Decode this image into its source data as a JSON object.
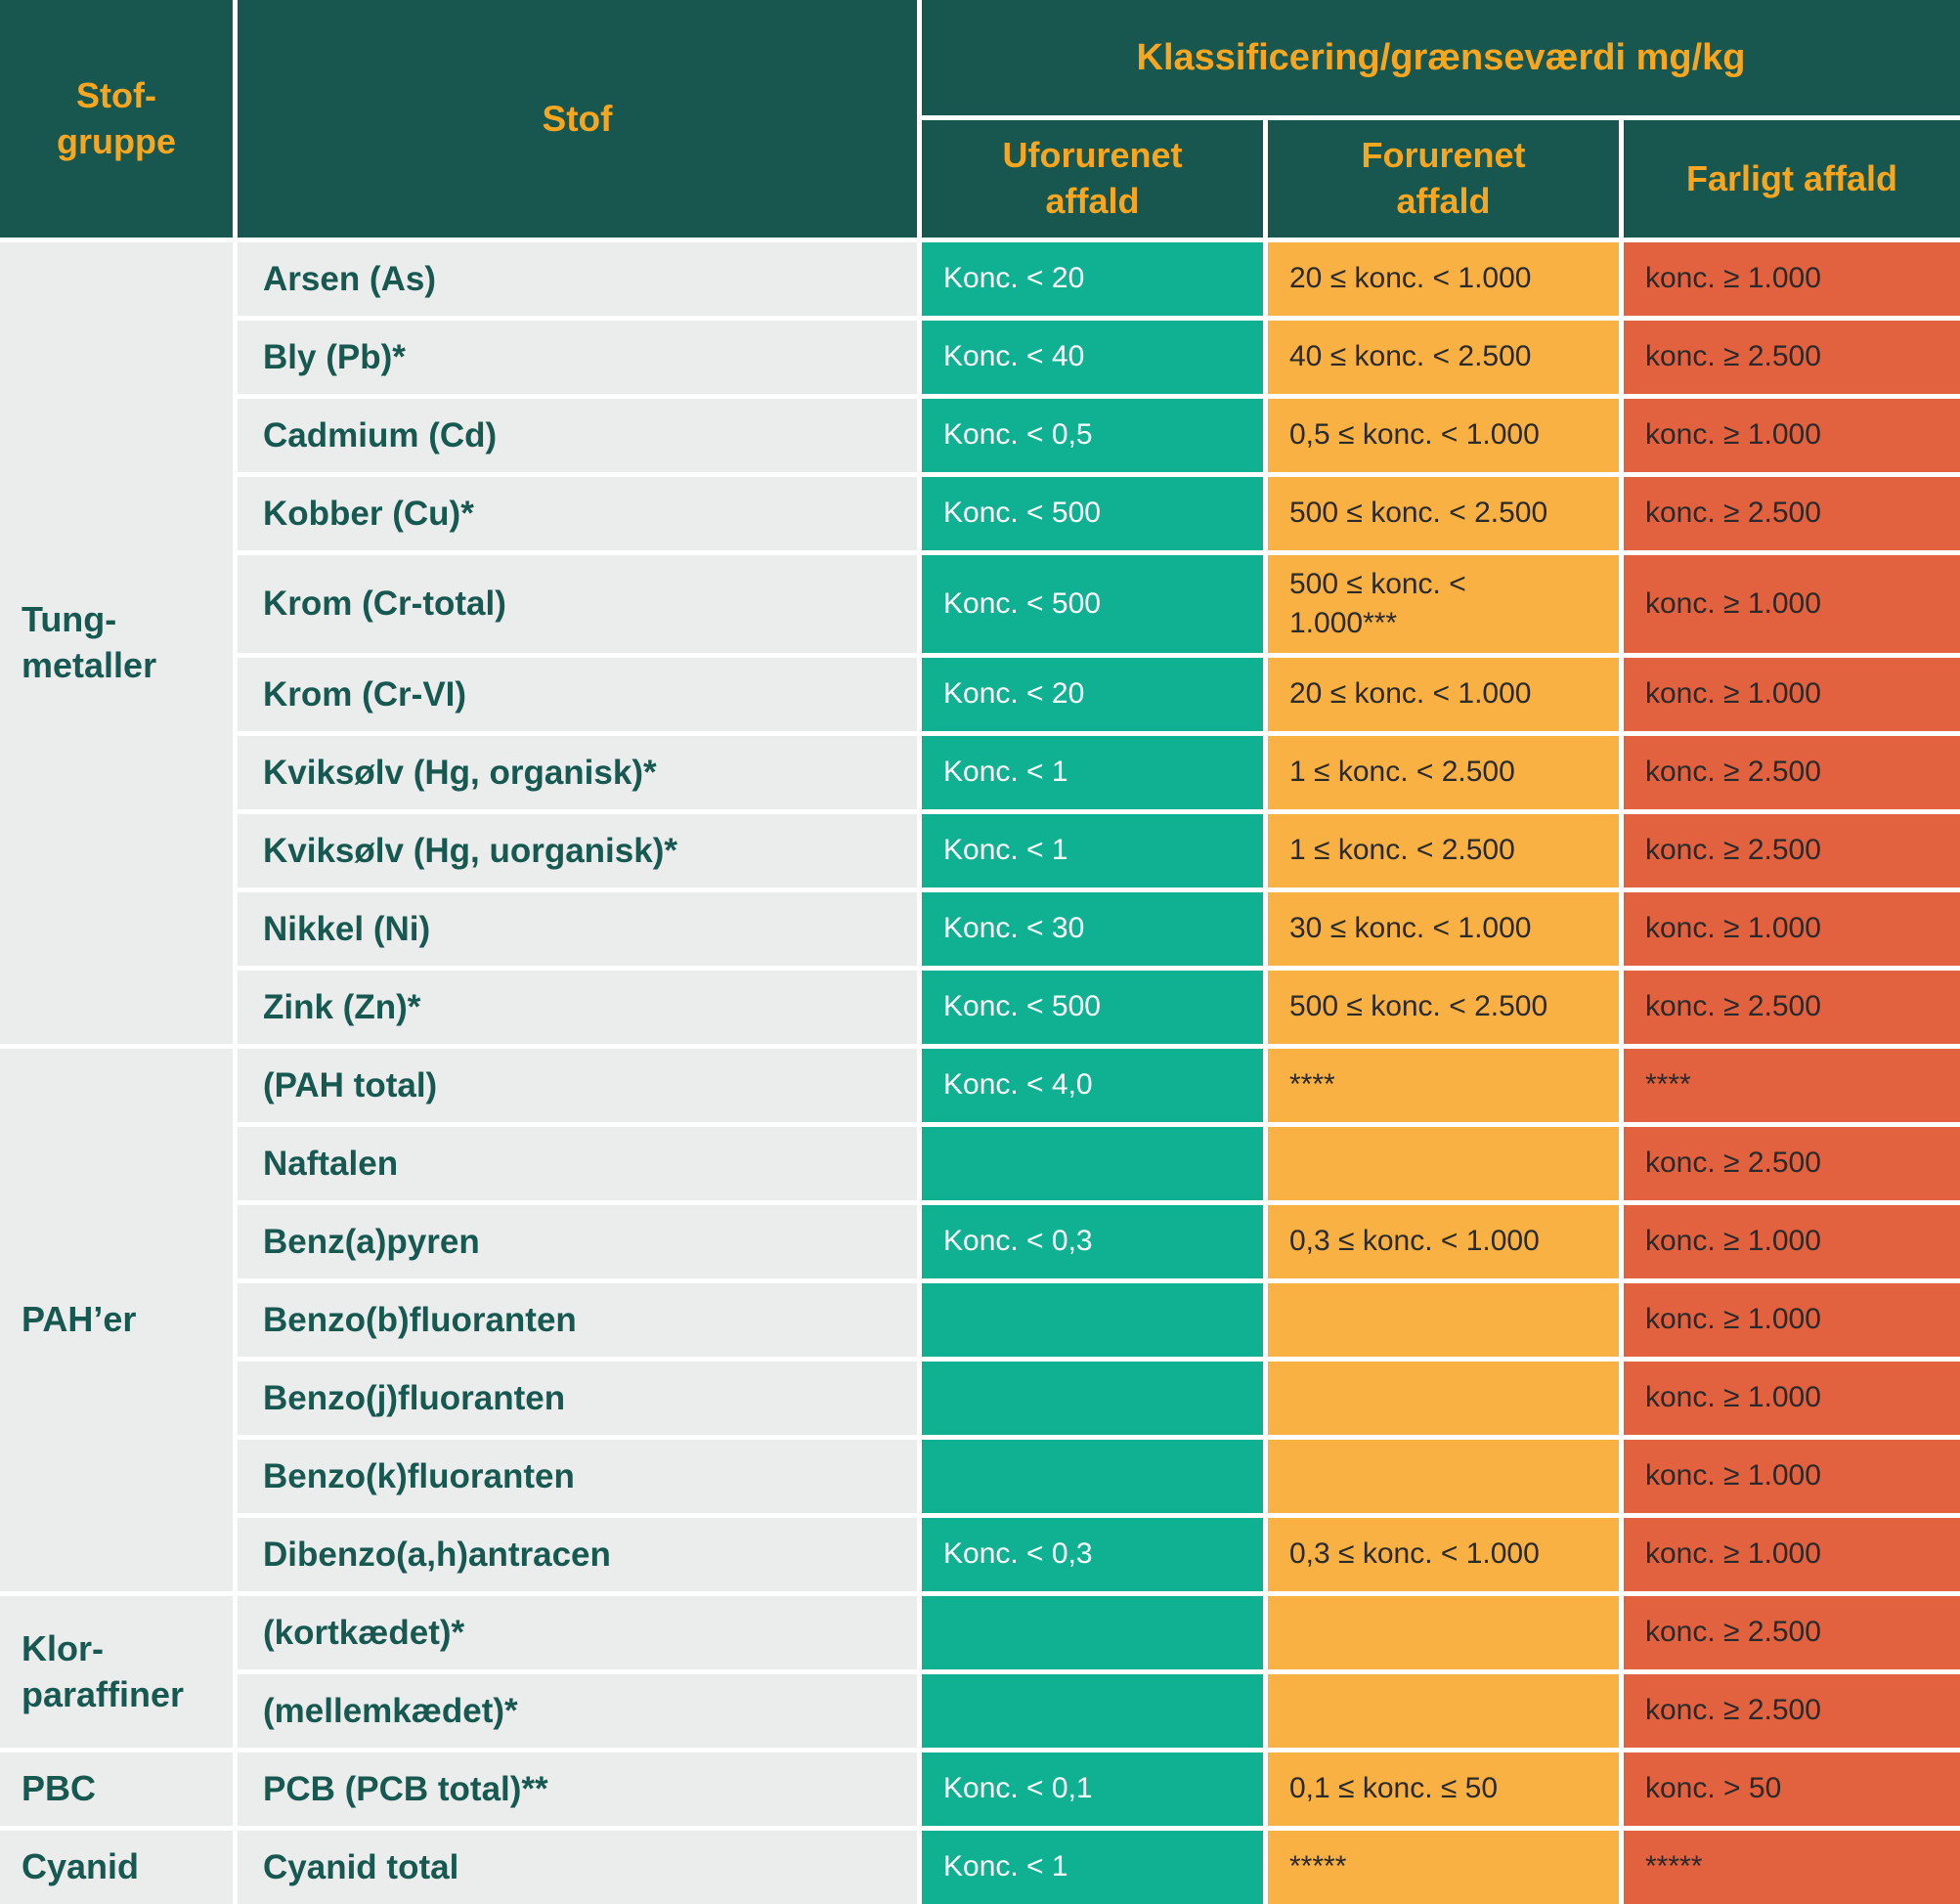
{
  "header": {
    "stofgruppe": "Stof-\ngruppe",
    "stof": "Stof",
    "klassificering": "Klassificering/grænseværdi mg/kg",
    "uforurenet": "Uforurenet\naffald",
    "forurenet": "Forurenet\naffald",
    "farligt": "Farligt affald"
  },
  "groups": [
    {
      "label": "Tung-\nmetaller",
      "rows": 10
    },
    {
      "label": "PAH’er",
      "rows": 7
    },
    {
      "label": "Klor-\nparaffiner",
      "rows": 2
    },
    {
      "label": "PBC",
      "rows": 1
    },
    {
      "label": "Cyanid",
      "rows": 1
    }
  ],
  "rows": [
    {
      "stof": "Arsen (As)",
      "uforurenet": "Konc. < 20",
      "forurenet": "20 ≤ konc. < 1.000",
      "farligt": "konc. ≥ 1.000"
    },
    {
      "stof": "Bly (Pb)*",
      "uforurenet": "Konc. < 40",
      "forurenet": "40 ≤ konc. < 2.500",
      "farligt": "konc. ≥ 2.500"
    },
    {
      "stof": "Cadmium (Cd)",
      "uforurenet": "Konc. < 0,5",
      "forurenet": "0,5 ≤ konc. < 1.000",
      "farligt": "konc. ≥ 1.000"
    },
    {
      "stof": "Kobber (Cu)*",
      "uforurenet": "Konc. < 500",
      "forurenet": "500 ≤ konc. < 2.500",
      "farligt": "konc. ≥ 2.500"
    },
    {
      "stof": "Krom (Cr-total)",
      "uforurenet": "Konc. < 500",
      "forurenet": "500 ≤ konc. <\n1.000***",
      "farligt": "konc. ≥ 1.000"
    },
    {
      "stof": "Krom (Cr-VI)",
      "uforurenet": "Konc. < 20",
      "forurenet": "20 ≤ konc. < 1.000",
      "farligt": "konc. ≥ 1.000"
    },
    {
      "stof": "Kviksølv (Hg, organisk)*",
      "uforurenet": "Konc. < 1",
      "forurenet": "1 ≤ konc. < 2.500",
      "farligt": "konc. ≥ 2.500"
    },
    {
      "stof": "Kviksølv (Hg, uorganisk)*",
      "uforurenet": "Konc. < 1",
      "forurenet": "1 ≤ konc. < 2.500",
      "farligt": "konc. ≥ 2.500"
    },
    {
      "stof": "Nikkel (Ni)",
      "uforurenet": "Konc. < 30",
      "forurenet": "30 ≤ konc. < 1.000",
      "farligt": "konc. ≥ 1.000"
    },
    {
      "stof": "Zink (Zn)*",
      "uforurenet": "Konc. < 500",
      "forurenet": "500 ≤ konc. < 2.500",
      "farligt": "konc. ≥ 2.500"
    },
    {
      "stof": "(PAH total)",
      "uforurenet": "Konc. < 4,0",
      "forurenet": "****",
      "farligt": "****"
    },
    {
      "stof": "Naftalen",
      "uforurenet": "",
      "forurenet": "",
      "farligt": "konc. ≥ 2.500"
    },
    {
      "stof": "Benz(a)pyren",
      "uforurenet": "Konc. < 0,3",
      "forurenet": "0,3 ≤ konc. < 1.000",
      "farligt": "konc. ≥ 1.000"
    },
    {
      "stof": "Benzo(b)fluoranten",
      "uforurenet": "",
      "forurenet": "",
      "farligt": "konc. ≥ 1.000"
    },
    {
      "stof": "Benzo(j)fluoranten",
      "uforurenet": "",
      "forurenet": "",
      "farligt": "konc. ≥ 1.000"
    },
    {
      "stof": "Benzo(k)fluoranten",
      "uforurenet": "",
      "forurenet": "",
      "farligt": "konc. ≥ 1.000"
    },
    {
      "stof": "Dibenzo(a,h)antracen",
      "uforurenet": "Konc. < 0,3",
      "forurenet": "0,3 ≤ konc. < 1.000",
      "farligt": "konc. ≥ 1.000"
    },
    {
      "stof": "(kortkædet)*",
      "uforurenet": "",
      "forurenet": "",
      "farligt": "konc. ≥ 2.500"
    },
    {
      "stof": "(mellemkædet)*",
      "uforurenet": "",
      "forurenet": "",
      "farligt": "konc. ≥ 2.500"
    },
    {
      "stof": "PCB (PCB total)**",
      "uforurenet": "Konc. < 0,1",
      "forurenet": "0,1 ≤ konc. ≤ 50",
      "farligt": "konc. > 50"
    },
    {
      "stof": "Cyanid total",
      "uforurenet": "Konc. < 1",
      "forurenet": "*****",
      "farligt": "*****"
    }
  ],
  "colors": {
    "header_bg": "#17574F",
    "header_text": "#F8A61F",
    "uforurenet_bg": "#10B192",
    "forurenet_bg": "#F9B144",
    "farligt_bg": "#E2613F",
    "label_bg": "#EBECEC",
    "substance_text": "#175951",
    "value_dark_text": "#2A2A2A",
    "value_light_text": "#FFFFFF"
  }
}
